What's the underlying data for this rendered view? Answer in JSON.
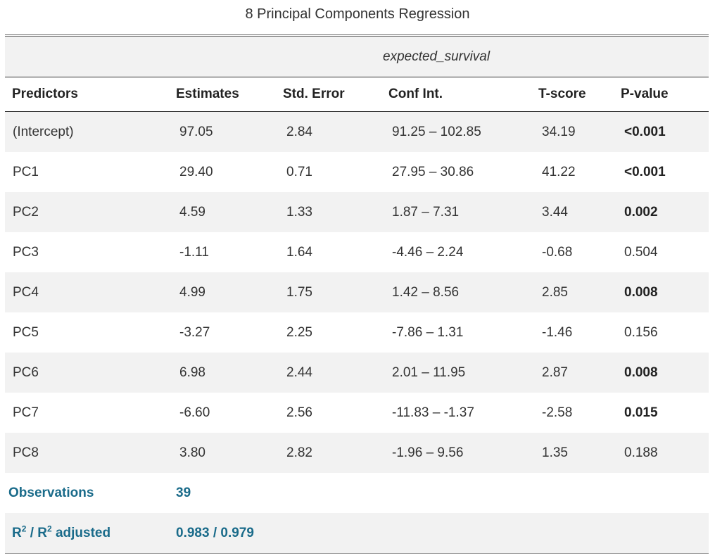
{
  "caption": "8 Principal Components Regression",
  "dependent_variable": "expected_survival",
  "headers": [
    "Predictors",
    "Estimates",
    "Std. Error",
    "Conf Int.",
    "T-score",
    "P-value"
  ],
  "rows": [
    {
      "predictor": "(Intercept)",
      "estimate": "97.05",
      "std_error": "2.84",
      "conf_int": "91.25 – 102.85",
      "t_score": "34.19",
      "p_value": "<0.001",
      "significant": true
    },
    {
      "predictor": "PC1",
      "estimate": "29.40",
      "std_error": "0.71",
      "conf_int": "27.95 – 30.86",
      "t_score": "41.22",
      "p_value": "<0.001",
      "significant": true
    },
    {
      "predictor": "PC2",
      "estimate": "4.59",
      "std_error": "1.33",
      "conf_int": "1.87 – 7.31",
      "t_score": "3.44",
      "p_value": "0.002",
      "significant": true
    },
    {
      "predictor": "PC3",
      "estimate": "-1.11",
      "std_error": "1.64",
      "conf_int": "-4.46 – 2.24",
      "t_score": "-0.68",
      "p_value": "0.504",
      "significant": false
    },
    {
      "predictor": "PC4",
      "estimate": "4.99",
      "std_error": "1.75",
      "conf_int": "1.42 – 8.56",
      "t_score": "2.85",
      "p_value": "0.008",
      "significant": true
    },
    {
      "predictor": "PC5",
      "estimate": "-3.27",
      "std_error": "2.25",
      "conf_int": "-7.86 – 1.31",
      "t_score": "-1.46",
      "p_value": "0.156",
      "significant": false
    },
    {
      "predictor": "PC6",
      "estimate": "6.98",
      "std_error": "2.44",
      "conf_int": "2.01 – 11.95",
      "t_score": "2.87",
      "p_value": "0.008",
      "significant": true
    },
    {
      "predictor": "PC7",
      "estimate": "-6.60",
      "std_error": "2.56",
      "conf_int": "-11.83 – -1.37",
      "t_score": "-2.58",
      "p_value": "0.015",
      "significant": true
    },
    {
      "predictor": "PC8",
      "estimate": "3.80",
      "std_error": "2.82",
      "conf_int": "-1.96 – 9.56",
      "t_score": "1.35",
      "p_value": "0.188",
      "significant": false
    }
  ],
  "summary": {
    "observations_label": "Observations",
    "observations_value": "39",
    "r2_label_r": "R",
    "r2_label_sup": "2",
    "r2_label_sep": " / R",
    "r2_label_sup2": "2",
    "r2_label_tail": " adjusted",
    "r2_value": "0.983 / 0.979"
  },
  "colors": {
    "summary_text": "#1a6b8a",
    "stripe": "#f2f2f2"
  }
}
